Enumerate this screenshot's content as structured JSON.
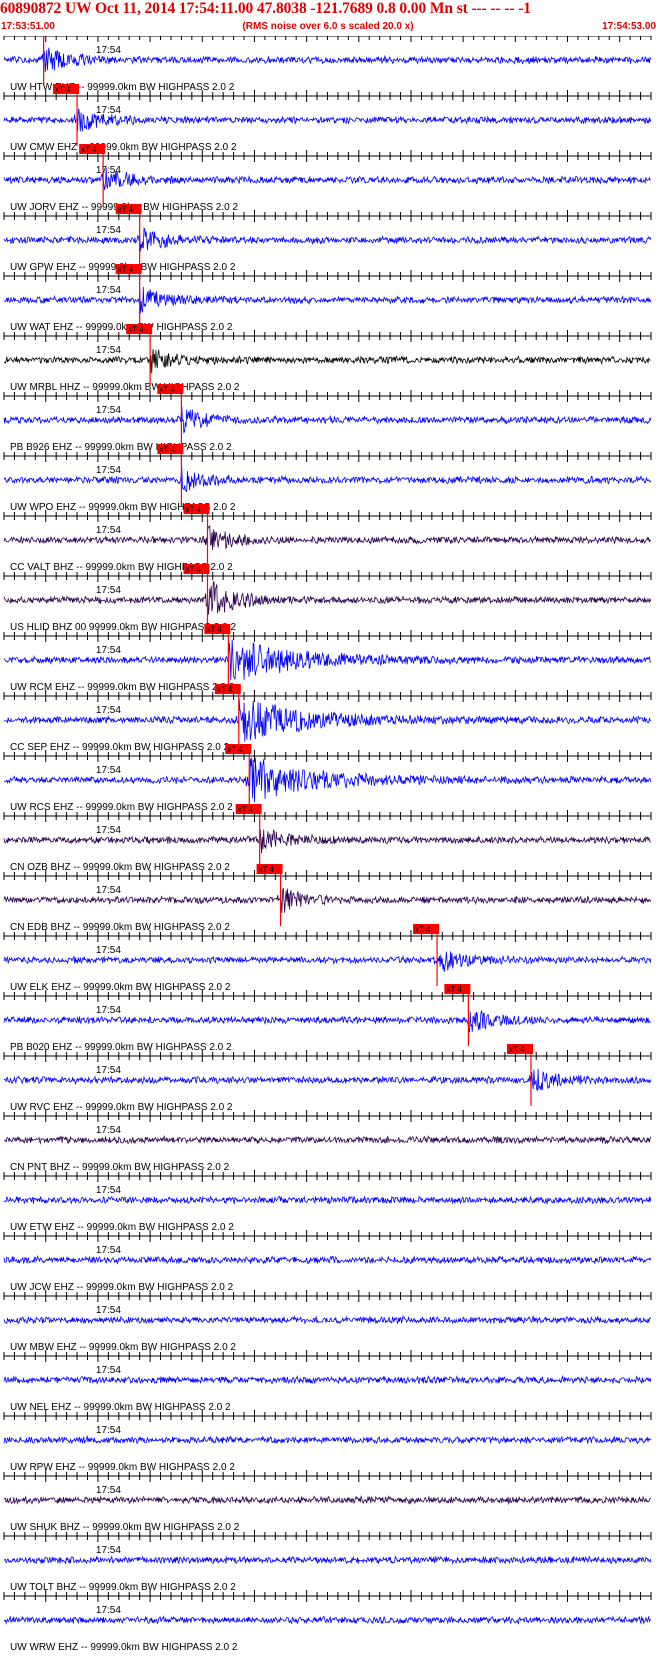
{
  "header": {
    "title": "60890872 UW Oct 11, 2014 17:54:11.00   47.8038 -121.7689  0.8 0.00 Mn st --- -- --  -1",
    "start_time": "17:53:51.00",
    "subtitle": "(RMS noise over 6.0 s scaled 20.0 x)",
    "end_time": "17:54:53.00"
  },
  "colors": {
    "title": "#e00000",
    "pick_box": "#ff0000",
    "pick_line": "#ff0000",
    "axis": "#000000",
    "blue_trace": "#0000ff",
    "black_trace": "#000000",
    "purple_trace": "#2a0050"
  },
  "chart_data": {
    "type": "seismogram",
    "time_range": [
      "17:53:51.00",
      "17:54:53.00"
    ],
    "tick_label": "17:54",
    "pick_label": "xT 4",
    "traces": [
      {
        "label": "UW HTW EHZ -- 99999.0km BW  HIGHPASS  2.0  2",
        "pick": "17:53:54.8",
        "color": "#0000ff"
      },
      {
        "label": "UW CMW EHZ -- 99999.0km BW  HIGHPASS  2.0  2",
        "pick": "17:53:58.0",
        "color": "#0000ff"
      },
      {
        "label": "UW JORV EHZ -- 99999.0km BW  HIGHPASS  2.0  2",
        "pick": "17:54:00.5",
        "color": "#0000ff"
      },
      {
        "label": "UW GPW EHZ -- 99999.0km BW  HIGHPASS  2.0  2",
        "pick": "17:54:04.0",
        "color": "#0000ff"
      },
      {
        "label": "UW WAT EHZ -- 99999.0km BW  HIGHPASS  2.0  2",
        "pick": "17:54:04.0",
        "color": "#0000ff"
      },
      {
        "label": "UW MRBL HHZ -- 99999.0km BW  HIGHPASS  2.0  2",
        "pick": "17:54:05.0",
        "color": "#000000"
      },
      {
        "label": "PB B926 EHZ -- 99999.0km BW  HIGHPASS  2.0  2",
        "pick": "17:54:08.0",
        "color": "#0000ff"
      },
      {
        "label": "UW WPO EHZ -- 99999.0km BW  HIGHPASS  2.0  2",
        "pick": "17:54:08.0",
        "color": "#0000ff"
      },
      {
        "label": "CC VALT BHZ -- 99999.0km BW  HIGHPASS  2.0  2",
        "pick": "17:54:10.5",
        "color": "#2a0050"
      },
      {
        "label": "US HLID BHZ 00 99999.0km BW  HIGHPASS  2.0  2",
        "pick": "17:54:10.5",
        "color": "#2a0050"
      },
      {
        "label": "UW RCM EHZ -- 99999.0km BW  HIGHPASS  2.0  2",
        "pick": "17:54:12.5",
        "color": "#0000ff"
      },
      {
        "label": "CC SEP EHZ -- 99999.0km BW  HIGHPASS  2.0  2",
        "pick": "17:54:13.5",
        "color": "#0000ff"
      },
      {
        "label": "UW RCS EHZ -- 99999.0km BW  HIGHPASS  2.0  2",
        "pick": "17:54:14.5",
        "color": "#0000ff"
      },
      {
        "label": "CN OZB BHZ -- 99999.0km BW  HIGHPASS  2.0  2",
        "pick": "17:54:15.5",
        "color": "#2a0050"
      },
      {
        "label": "CN EDB BHZ -- 99999.0km BW  HIGHPASS  2.0  2",
        "pick": "17:54:17.5",
        "color": "#2a0050"
      },
      {
        "label": "UW ELK EHZ -- 99999.0km BW  HIGHPASS  2.0  2",
        "pick": "17:54:32.5",
        "color": "#0000ff"
      },
      {
        "label": "PB B020 EHZ -- 99999.0km BW  HIGHPASS  2.0  2",
        "pick": "17:54:35.5",
        "color": "#0000ff"
      },
      {
        "label": "UW RVC EHZ -- 99999.0km BW  HIGHPASS  2.0  2",
        "pick": "17:54:41.5",
        "color": "#0000ff"
      },
      {
        "label": "CN PNT BHZ -- 99999.0km BW  HIGHPASS  2.0  2",
        "pick": null,
        "color": "#2a0050"
      },
      {
        "label": "UW ETW EHZ -- 99999.0km BW  HIGHPASS  2.0  2",
        "pick": null,
        "color": "#0000ff"
      },
      {
        "label": "UW JCW EHZ -- 99999.0km BW  HIGHPASS  2.0  2",
        "pick": null,
        "color": "#0000ff"
      },
      {
        "label": "UW MBW EHZ -- 99999.0km BW  HIGHPASS  2.0  2",
        "pick": null,
        "color": "#0000ff"
      },
      {
        "label": "UW NEL EHZ -- 99999.0km BW  HIGHPASS  2.0  2",
        "pick": null,
        "color": "#0000ff"
      },
      {
        "label": "UW RPW EHZ -- 99999.0km BW  HIGHPASS  2.0  2",
        "pick": null,
        "color": "#0000ff"
      },
      {
        "label": "UW SHUK BHZ -- 99999.0km BW  HIGHPASS  2.0  2",
        "pick": null,
        "color": "#2a0050"
      },
      {
        "label": "UW TOLT BHZ -- 99999.0km BW  HIGHPASS  2.0  2",
        "pick": null,
        "color": "#0000ff"
      },
      {
        "label": "UW WRW EHZ -- 99999.0km BW  HIGHPASS  2.0  2",
        "pick": null,
        "color": "#0000ff"
      }
    ]
  }
}
